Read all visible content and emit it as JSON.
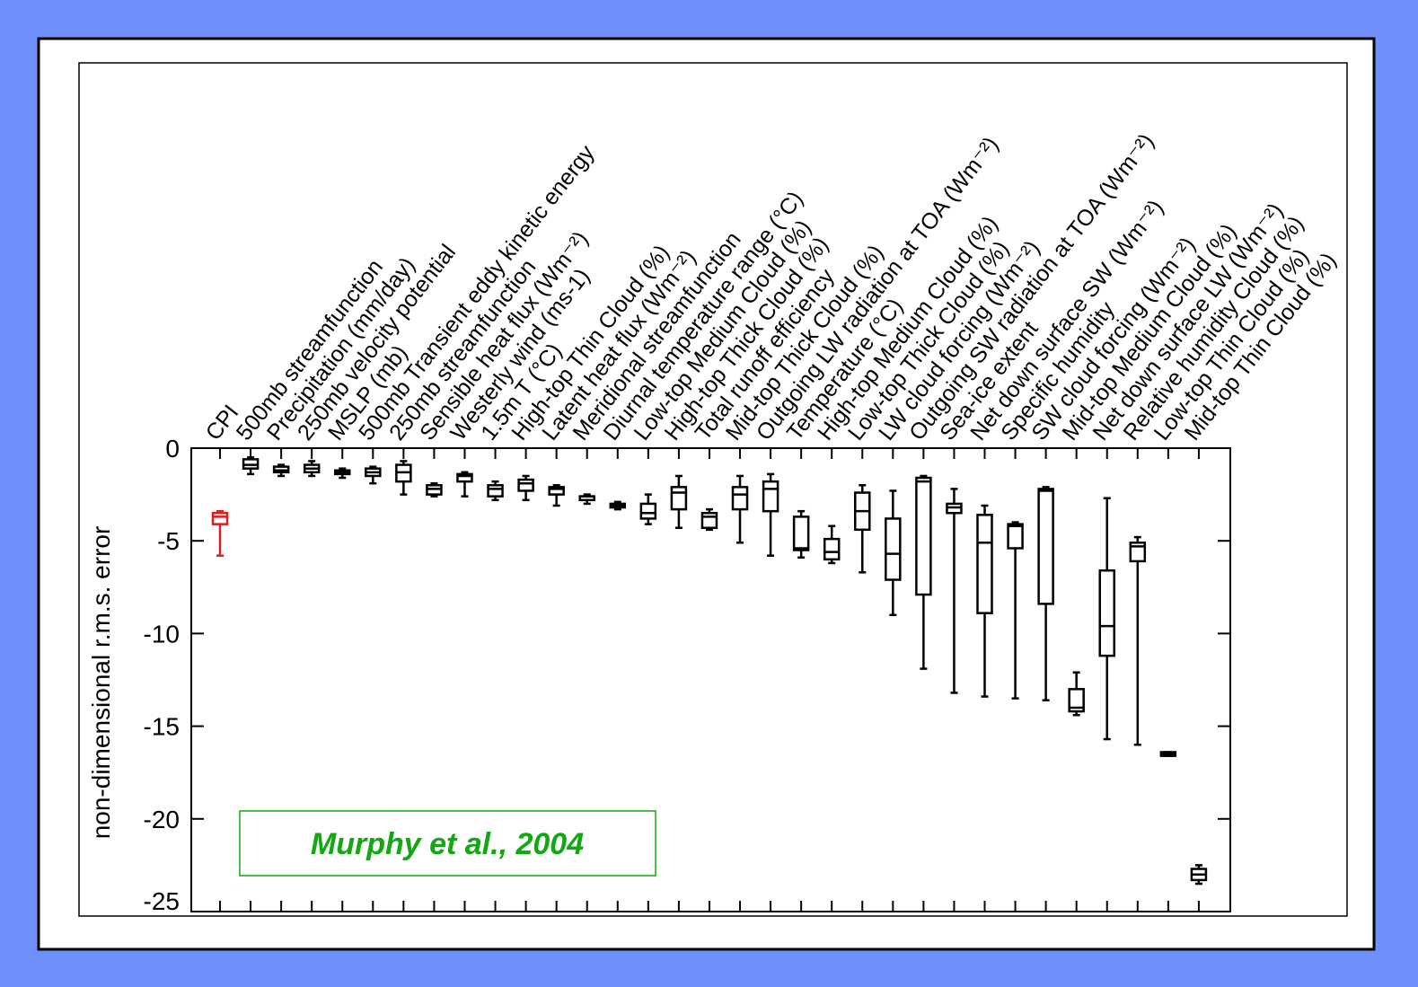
{
  "chart_data": {
    "type": "box",
    "ylabel": "non-dimensional r.m.s. error",
    "annotation": "Murphy et al., 2004",
    "annotation_color": "#11a811",
    "ylim": [
      -25,
      0
    ],
    "yticks": [
      0,
      -5,
      -10,
      -15,
      -20,
      -25
    ],
    "categories": [
      "CPI",
      "500mb streamfunction",
      "Precipitation (mm/day)",
      "250mb velocity potential",
      "MSLP (mb)",
      "500mb Transient eddy kinetic energy",
      "250mb streamfunction",
      "Sensible heat flux (Wm⁻²)",
      "Westerly wind (ms-1)",
      "1.5m T (°C)",
      "High-top Thin Cloud (%)",
      "Latent heat flux (Wm⁻²)",
      "Meridional streamfunction",
      "Diurnal temperature range (°C)",
      "Low-top Medium Cloud (%)",
      "High-top Thick Cloud (%)",
      "Total runoff efficiency",
      "Mid-top Thick Cloud (%)",
      "Outgoing LW radiation at TOA (Wm⁻²)",
      "Temperature (°C)",
      "High-top Medium Cloud (%)",
      "Low-top Thick Cloud (%)",
      "LW cloud forcing (Wm⁻²)",
      "Outgoing SW radiation at TOA (Wm⁻²)",
      "Sea-ice extent",
      "Net down surface SW (Wm⁻²)",
      "Specific humidity",
      "SW cloud forcing (Wm⁻²)",
      "Mid-top Medium Cloud (%)",
      "Net down surface LW (Wm⁻²)",
      "Relative humidity Cloud (%)",
      "Low-top Thin Cloud (%)",
      "Mid-top Thin Cloud (%)"
    ],
    "box_colors": [
      "#d81e1e",
      "#000000",
      "#000000",
      "#000000",
      "#000000",
      "#000000",
      "#000000",
      "#000000",
      "#000000",
      "#000000",
      "#000000",
      "#000000",
      "#000000",
      "#000000",
      "#000000",
      "#000000",
      "#000000",
      "#000000",
      "#000000",
      "#000000",
      "#000000",
      "#000000",
      "#000000",
      "#000000",
      "#000000",
      "#000000",
      "#000000",
      "#000000",
      "#000000",
      "#000000",
      "#000000",
      "#000000",
      "#000000"
    ],
    "min": [
      -5.8,
      -1.4,
      -1.5,
      -1.5,
      -1.6,
      -1.9,
      -2.5,
      -2.6,
      -2.6,
      -2.8,
      -2.8,
      -3.1,
      -3.0,
      -3.3,
      -4.1,
      -4.3,
      -4.4,
      -5.1,
      -5.8,
      -5.9,
      -6.2,
      -6.7,
      -9.0,
      -11.9,
      -13.2,
      -13.4,
      -13.5,
      -13.6,
      -14.4,
      -15.7,
      -16.0,
      -16.6,
      -23.5
    ],
    "q1": [
      -4.1,
      -1.1,
      -1.3,
      -1.3,
      -1.4,
      -1.5,
      -1.8,
      -2.5,
      -1.8,
      -2.6,
      -2.3,
      -2.5,
      -2.8,
      -3.2,
      -3.8,
      -3.3,
      -4.3,
      -3.3,
      -3.4,
      -5.5,
      -6.0,
      -4.4,
      -7.1,
      -7.9,
      -3.5,
      -8.9,
      -5.4,
      -8.4,
      -14.2,
      -11.2,
      -6.1,
      -16.6,
      -23.3
    ],
    "median": [
      -3.7,
      -0.9,
      -1.2,
      -1.1,
      -1.3,
      -1.3,
      -1.3,
      -2.2,
      -1.5,
      -2.2,
      -1.9,
      -2.2,
      -2.6,
      -3.1,
      -3.5,
      -2.4,
      -3.7,
      -2.5,
      -2.2,
      -5.4,
      -5.6,
      -3.4,
      -5.7,
      -1.8,
      -3.2,
      -5.1,
      -4.2,
      -2.3,
      -14.0,
      -9.6,
      -5.3,
      -16.5,
      -23.0
    ],
    "q3": [
      -3.5,
      -0.6,
      -1.0,
      -0.9,
      -1.2,
      -1.1,
      -0.9,
      -2.0,
      -1.4,
      -2.0,
      -1.7,
      -2.1,
      -2.6,
      -3.0,
      -3.0,
      -2.1,
      -3.5,
      -2.1,
      -1.8,
      -3.7,
      -4.9,
      -2.4,
      -3.8,
      -1.6,
      -3.0,
      -3.6,
      -4.1,
      -2.2,
      -13.0,
      -6.6,
      -5.1,
      -16.4,
      -22.7
    ],
    "max": [
      -3.4,
      -0.5,
      -0.9,
      -0.7,
      -1.1,
      -1.0,
      -0.7,
      -1.9,
      -1.3,
      -1.8,
      -1.5,
      -2.0,
      -2.5,
      -2.9,
      -2.5,
      -1.5,
      -3.3,
      -1.5,
      -1.4,
      -3.4,
      -4.2,
      -2.0,
      -2.3,
      -1.5,
      -2.2,
      -3.1,
      -4.0,
      -2.1,
      -12.1,
      -2.7,
      -4.8,
      -16.4,
      -22.5
    ]
  }
}
